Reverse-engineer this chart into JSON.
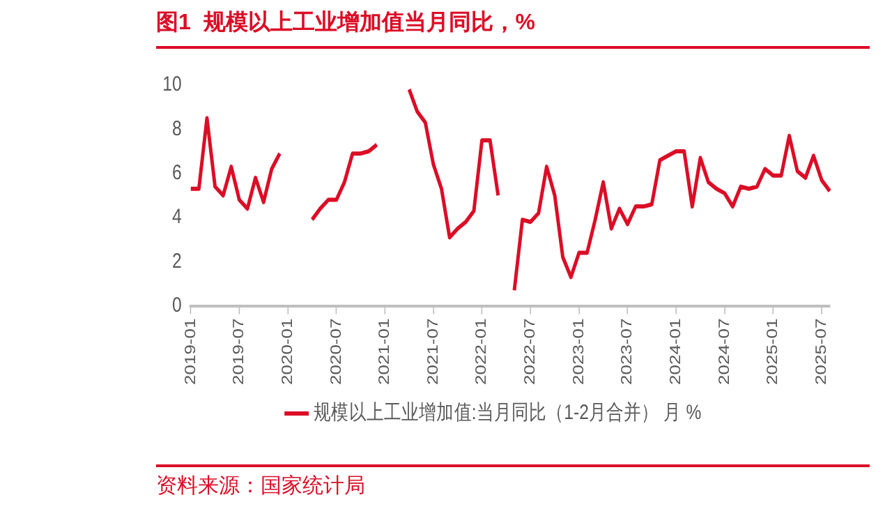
{
  "chart_data": {
    "type": "line",
    "title": "图1  规模以上工业增加值当月同比，%",
    "annotations": [
      "资料来源：国家统计局"
    ],
    "categories": [
      "2019-01",
      null,
      null,
      null,
      null,
      null,
      "2019-07",
      null,
      null,
      null,
      null,
      null,
      "2020-01",
      null,
      null,
      null,
      null,
      null,
      "2020-07",
      null,
      null,
      null,
      null,
      null,
      "2021-01",
      null,
      null,
      null,
      null,
      null,
      "2021-07",
      null,
      null,
      null,
      null,
      null,
      "2022-01",
      null,
      null,
      null,
      null,
      null,
      "2022-07",
      null,
      null,
      null,
      null,
      null,
      "2023-01",
      null,
      null,
      null,
      null,
      null,
      "2023-07",
      null,
      null,
      null,
      null,
      null,
      "2024-01",
      null,
      null,
      null,
      null,
      null,
      "2024-07",
      null,
      null,
      null,
      null,
      null,
      "2025-01",
      null,
      null,
      null,
      null,
      null,
      "2025-07",
      null
    ],
    "series": [
      {
        "name": "规模以上工业增加值:当月同比（1-2月合并） 月 %",
        "color": "#dc0d26",
        "values": [
          5.3,
          5.3,
          8.5,
          5.4,
          5.0,
          6.3,
          4.8,
          4.4,
          5.8,
          4.7,
          6.2,
          6.9,
          null,
          null,
          null,
          3.9,
          4.4,
          4.8,
          4.8,
          5.6,
          6.9,
          6.9,
          7.0,
          7.3,
          null,
          null,
          null,
          9.8,
          8.8,
          8.3,
          6.4,
          5.3,
          3.1,
          3.5,
          3.8,
          4.3,
          7.5,
          7.5,
          5.0,
          null,
          0.7,
          3.9,
          3.8,
          4.2,
          6.3,
          5.0,
          2.2,
          1.3,
          2.4,
          2.4,
          3.9,
          5.6,
          3.5,
          4.4,
          3.7,
          4.5,
          4.5,
          4.6,
          6.6,
          6.8,
          7.0,
          7.0,
          4.5,
          6.7,
          5.6,
          5.3,
          5.1,
          4.5,
          5.4,
          5.3,
          5.4,
          6.2,
          5.9,
          5.9,
          7.7,
          6.1,
          5.8,
          6.8,
          5.7,
          5.2
        ]
      }
    ],
    "ylim": [
      0,
      10
    ],
    "yticks": [
      0,
      2,
      4,
      6,
      8,
      10
    ],
    "legend": "bottom",
    "marker": "none",
    "line_style": "solid"
  }
}
